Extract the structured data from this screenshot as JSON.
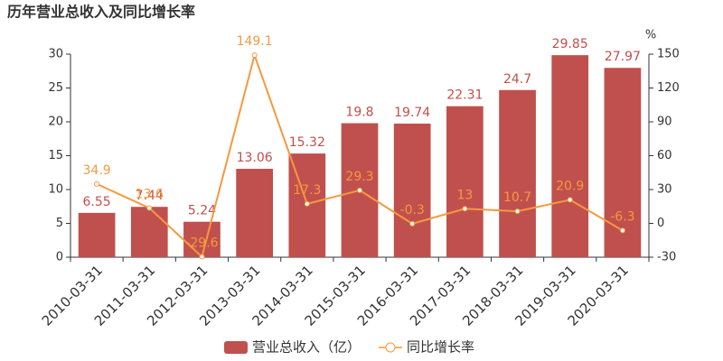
{
  "chart_data": {
    "type": "bar",
    "title": "历年营业总收入及同比增长率",
    "y2_unit": "%",
    "categories": [
      "2010-03-31",
      "2011-03-31",
      "2012-03-31",
      "2013-03-31",
      "2014-03-31",
      "2015-03-31",
      "2016-03-31",
      "2017-03-31",
      "2018-03-31",
      "2019-03-31",
      "2020-03-31"
    ],
    "series": [
      {
        "name": "营业总收入（亿）",
        "type": "bar",
        "color": "#c0504d",
        "values": [
          6.55,
          7.44,
          5.24,
          13.06,
          15.32,
          19.8,
          19.74,
          22.31,
          24.7,
          29.85,
          27.97
        ]
      },
      {
        "name": "同比增长率",
        "type": "line",
        "axis": "y2",
        "color": "#f5993f",
        "values": [
          34.9,
          13.6,
          -29.6,
          149.1,
          17.3,
          29.3,
          -0.3,
          13,
          10.7,
          20.9,
          -6.3
        ]
      }
    ],
    "ylim": [
      0,
      30
    ],
    "yticks": [
      0,
      5,
      10,
      15,
      20,
      25,
      30
    ],
    "y2lim": [
      -30,
      150
    ],
    "y2ticks": [
      -30,
      0,
      30,
      60,
      90,
      120,
      150
    ],
    "grid": false
  }
}
